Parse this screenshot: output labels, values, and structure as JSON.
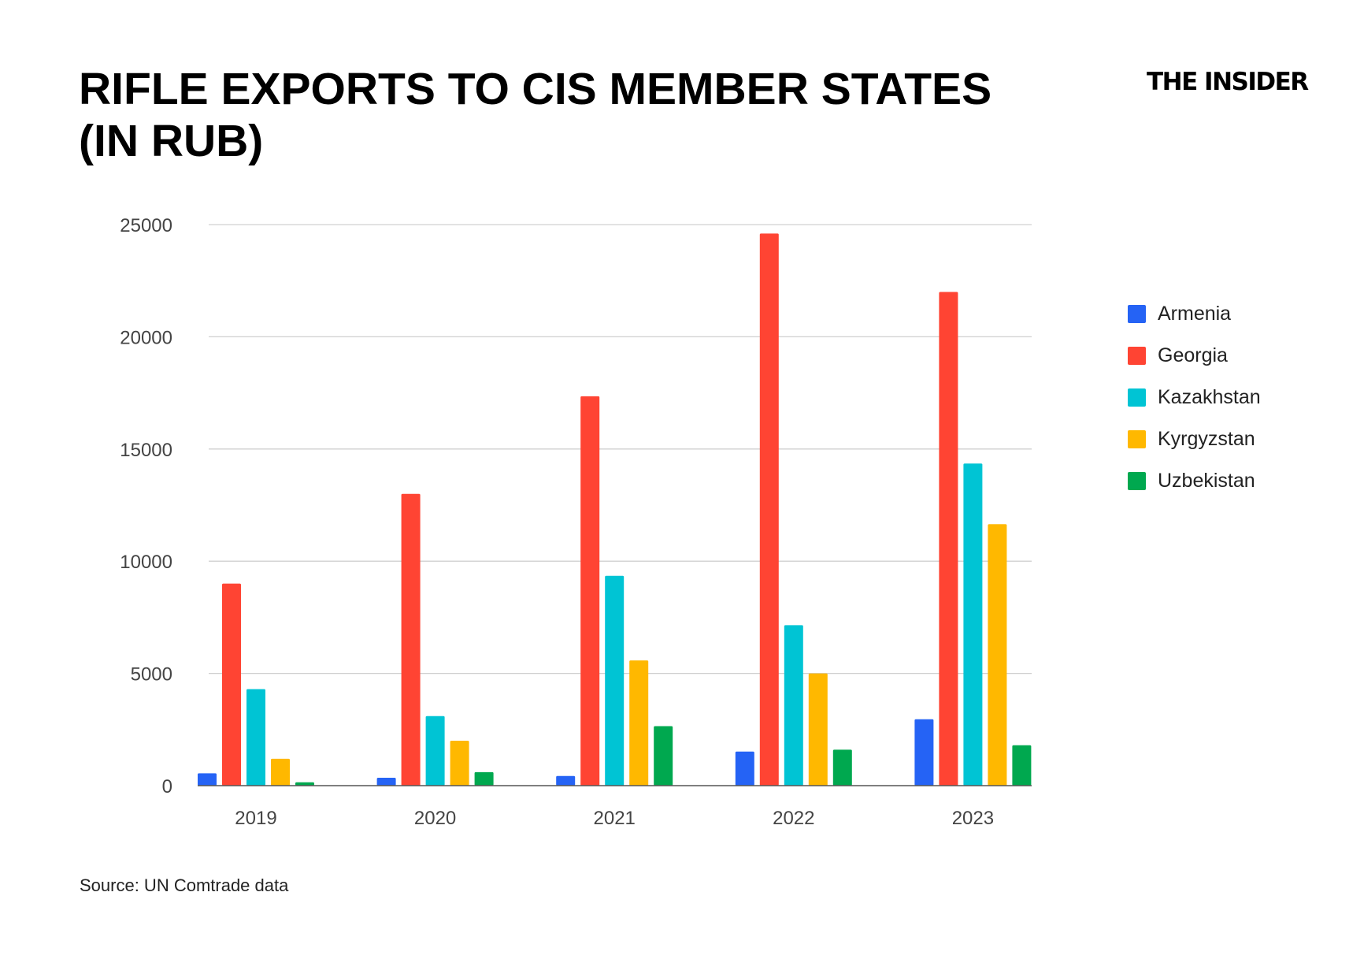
{
  "title": "RIFLE EXPORTS TO CIS MEMBER STATES (IN RUB)",
  "logo": "THE INSIDER",
  "source": "Source: UN Comtrade data",
  "chart_data": {
    "type": "bar",
    "title": "RIFLE EXPORTS TO CIS MEMBER STATES (IN RUB)",
    "xlabel": "",
    "ylabel": "",
    "categories": [
      "2019",
      "2020",
      "2021",
      "2022",
      "2023"
    ],
    "ylim": [
      0,
      25000
    ],
    "yticks": [
      "0",
      "5000",
      "10000",
      "15000",
      "20000",
      "25000"
    ],
    "grid": true,
    "legend_position": "right",
    "series": [
      {
        "name": "Armenia",
        "color": "#2563f5",
        "values": [
          550,
          350,
          430,
          1520,
          2960
        ]
      },
      {
        "name": "Georgia",
        "color": "#ff4433",
        "values": [
          9000,
          13000,
          17350,
          24600,
          22000
        ]
      },
      {
        "name": "Kazakhstan",
        "color": "#00c4d4",
        "values": [
          4300,
          3100,
          9350,
          7150,
          14350
        ]
      },
      {
        "name": "Kyrgyzstan",
        "color": "#ffb800",
        "values": [
          1200,
          2000,
          5580,
          5000,
          11650
        ]
      },
      {
        "name": "Uzbekistan",
        "color": "#00a84f",
        "values": [
          150,
          600,
          2650,
          1600,
          1800
        ]
      }
    ]
  }
}
